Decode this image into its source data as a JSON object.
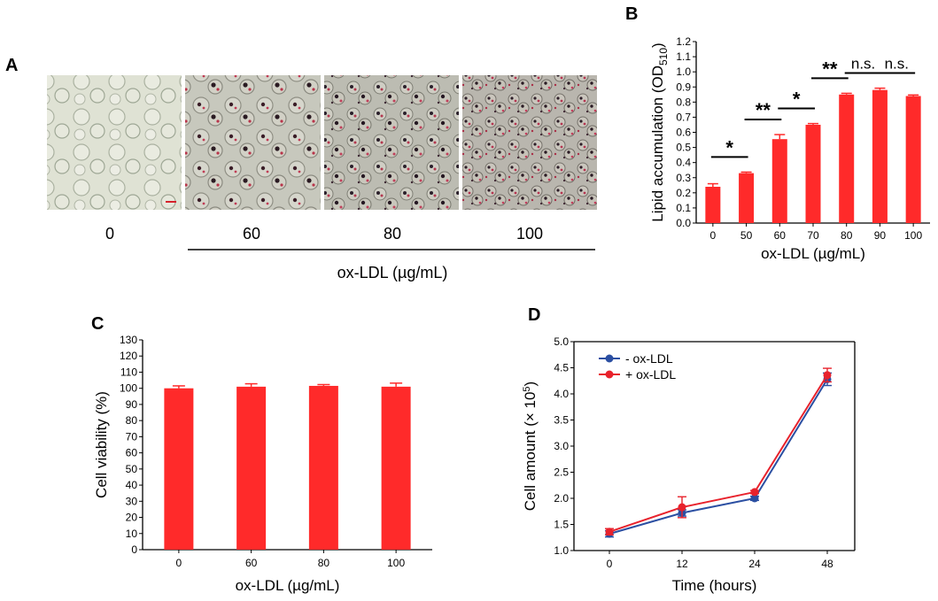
{
  "panels": {
    "A": {
      "letter": "A",
      "image_labels": [
        "0",
        "60",
        "80",
        "100"
      ],
      "group_label": "ox-LDL (µg/mL)"
    },
    "B": {
      "letter": "B",
      "sig_labels": [
        "*",
        "**",
        "*",
        "**",
        "n.s.",
        "n.s."
      ]
    },
    "C": {
      "letter": "C"
    },
    "D": {
      "letter": "D"
    }
  },
  "colors": {
    "bar": "#ff2a2a",
    "minus": "#2b4fa2",
    "plus": "#e8222c",
    "axis": "#000000"
  },
  "chart_data": [
    {
      "id": "B",
      "type": "bar",
      "categories": [
        "0",
        "50",
        "60",
        "70",
        "80",
        "90",
        "100"
      ],
      "values": [
        0.24,
        0.33,
        0.555,
        0.65,
        0.85,
        0.88,
        0.84
      ],
      "errors": [
        0.02,
        0.007,
        0.03,
        0.008,
        0.008,
        0.012,
        0.007
      ],
      "xlabel": "ox-LDL (µg/mL)",
      "ylabel": "Lipid accumulation (OD",
      "ylabel_sub": "510",
      "ylabel_end": ")",
      "ylim": [
        0,
        1.2
      ],
      "yticks": [
        "0.0",
        "0.1",
        "0.2",
        "0.3",
        "0.4",
        "0.5",
        "0.6",
        "0.7",
        "0.8",
        "0.9",
        "1.0",
        "1.1",
        "1.2"
      ],
      "significance": [
        {
          "from": "0",
          "to": "50",
          "label": "*"
        },
        {
          "from": "50",
          "to": "60",
          "label": "**"
        },
        {
          "from": "60",
          "to": "70",
          "label": "*"
        },
        {
          "from": "70",
          "to": "80",
          "label": "**"
        },
        {
          "from": "80",
          "to": "90",
          "label": "n.s."
        },
        {
          "from": "90",
          "to": "100",
          "label": "n.s."
        }
      ]
    },
    {
      "id": "C",
      "type": "bar",
      "categories": [
        "0",
        "60",
        "80",
        "100"
      ],
      "values": [
        100,
        101,
        101.5,
        101
      ],
      "errors": [
        1.5,
        1.8,
        0.8,
        2.2
      ],
      "xlabel": "ox-LDL (µg/mL)",
      "ylabel": "Cell viability (%)",
      "ylim": [
        0,
        130
      ],
      "yticks": [
        "0",
        "10",
        "20",
        "30",
        "40",
        "50",
        "60",
        "70",
        "80",
        "90",
        "100",
        "110",
        "120",
        "130"
      ]
    },
    {
      "id": "D",
      "type": "line",
      "categories": [
        "0",
        "12",
        "24",
        "48"
      ],
      "xlabel": "Time (hours)",
      "ylabel": "Cell amount (× 10",
      "ylabel_sup": "5",
      "ylabel_end": ")",
      "ylim": [
        1.0,
        5.0
      ],
      "yticks": [
        "1.0",
        "1.5",
        "2.0",
        "2.5",
        "3.0",
        "3.5",
        "4.0",
        "4.5",
        "5.0"
      ],
      "series": [
        {
          "name": "- ox-LDL",
          "values": [
            1.32,
            1.72,
            2.0,
            4.28
          ],
          "errors": [
            0.06,
            0.06,
            0.04,
            0.12
          ]
        },
        {
          "name": "+ ox-LDL",
          "values": [
            1.36,
            1.83,
            2.12,
            4.36
          ],
          "errors": [
            0.06,
            0.2,
            0.03,
            0.13
          ]
        }
      ]
    }
  ]
}
